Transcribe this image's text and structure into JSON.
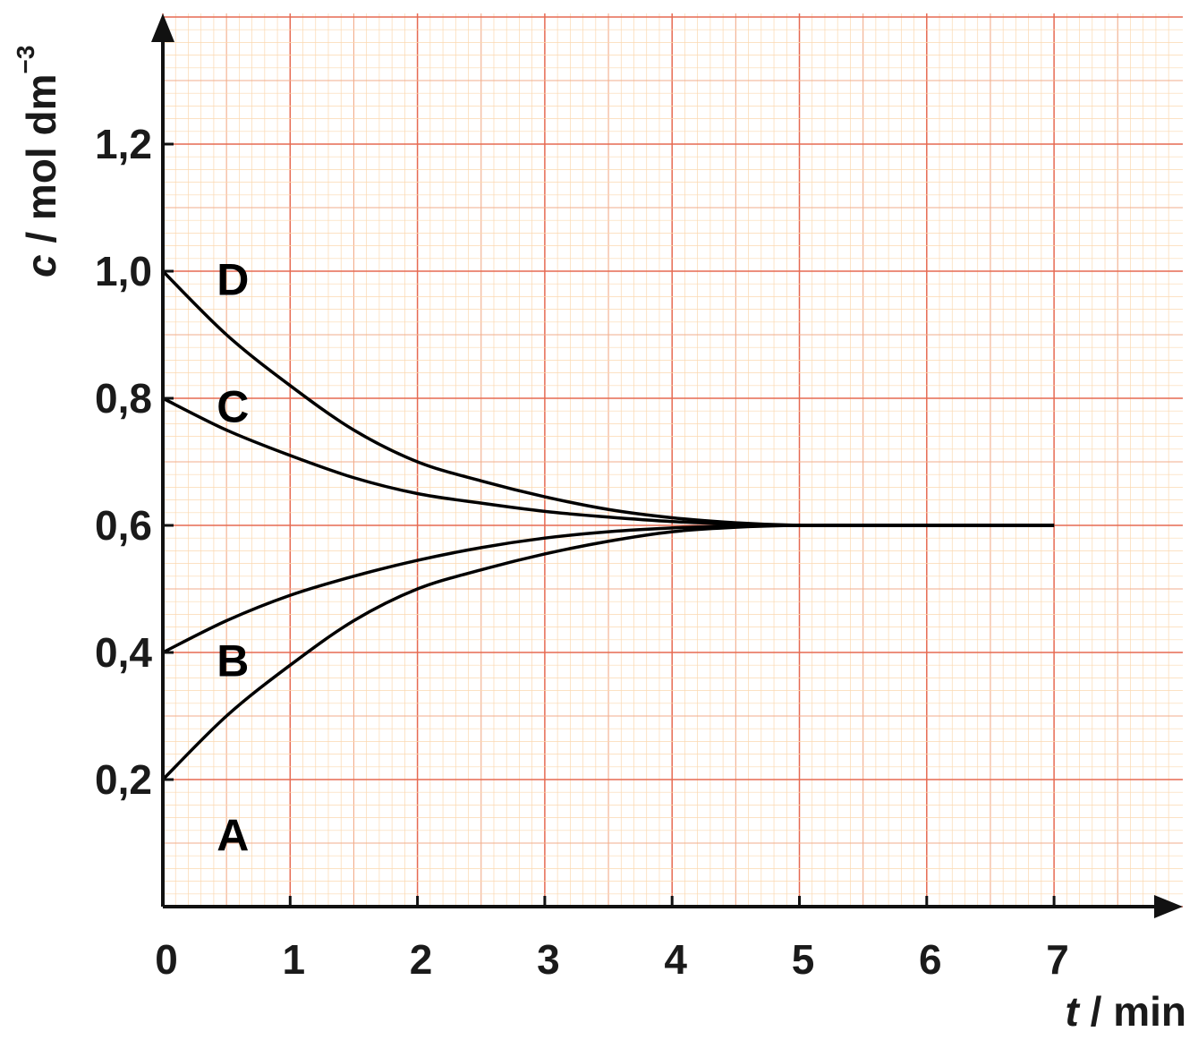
{
  "chart_data": {
    "type": "line",
    "xlabel": {
      "var": "t",
      "unit": " / min"
    },
    "ylabel": {
      "var": "c",
      "unit": " / mol dm",
      "sup": "−3"
    },
    "xlim": [
      0,
      7.9
    ],
    "ylim": [
      0,
      1.39
    ],
    "x_ticks": [
      0,
      1,
      2,
      3,
      4,
      5,
      6,
      7
    ],
    "x_tick_labels": [
      "0",
      "1",
      "2",
      "3",
      "4",
      "5",
      "6",
      "7"
    ],
    "y_ticks": [
      0.2,
      0.4,
      0.6,
      0.8,
      1.0,
      1.2
    ],
    "y_tick_labels": [
      "0,2",
      "0,4",
      "0,6",
      "0,8",
      "1,0",
      "1,2"
    ],
    "grid": true,
    "x": [
      0,
      0.5,
      1,
      1.5,
      2,
      2.5,
      3,
      3.5,
      4,
      4.5,
      5,
      5.5,
      6,
      6.5,
      7
    ],
    "series": [
      {
        "name": "A",
        "values": [
          0.2,
          0.3,
          0.38,
          0.45,
          0.5,
          0.53,
          0.555,
          0.575,
          0.59,
          0.597,
          0.6,
          0.6,
          0.6,
          0.6,
          0.6
        ]
      },
      {
        "name": "B",
        "values": [
          0.4,
          0.45,
          0.49,
          0.52,
          0.545,
          0.565,
          0.58,
          0.59,
          0.596,
          0.599,
          0.6,
          0.6,
          0.6,
          0.6,
          0.6
        ]
      },
      {
        "name": "C",
        "values": [
          0.8,
          0.75,
          0.71,
          0.675,
          0.65,
          0.635,
          0.622,
          0.613,
          0.606,
          0.602,
          0.6,
          0.6,
          0.6,
          0.6,
          0.6
        ]
      },
      {
        "name": "D",
        "values": [
          1.0,
          0.9,
          0.82,
          0.75,
          0.7,
          0.67,
          0.645,
          0.625,
          0.612,
          0.604,
          0.6,
          0.6,
          0.6,
          0.6,
          0.6
        ]
      }
    ]
  }
}
